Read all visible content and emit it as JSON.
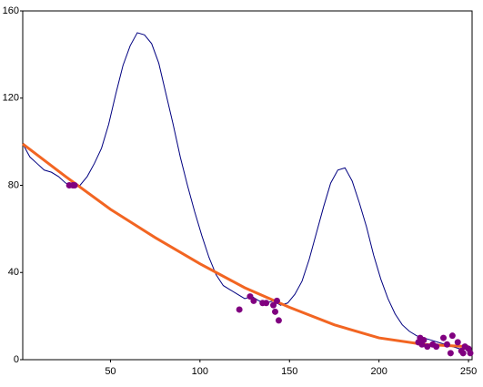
{
  "chart_data": {
    "type": "line",
    "xlim": [
      1,
      252
    ],
    "ylim": [
      0,
      160
    ],
    "xticks": [
      50,
      100,
      150,
      200,
      250
    ],
    "yticks": [
      0,
      40,
      80,
      120,
      160
    ],
    "series": [
      {
        "kind": "line",
        "color": "#000080",
        "width": 1,
        "x": [
          1,
          5,
          9,
          13,
          17,
          21,
          25,
          29,
          33,
          37,
          41,
          45,
          49,
          53,
          57,
          61,
          65,
          69,
          73,
          77,
          81,
          85,
          89,
          93,
          97,
          101,
          105,
          109,
          113,
          117,
          121,
          125,
          129,
          133,
          137,
          141,
          145,
          149,
          153,
          157,
          161,
          165,
          169,
          173,
          177,
          181,
          185,
          189,
          193,
          197,
          201,
          205,
          209,
          213,
          217,
          221,
          225,
          229,
          233,
          237,
          241,
          245,
          249
        ],
        "values": [
          99,
          93,
          90,
          87,
          86,
          84,
          81,
          80,
          80,
          84,
          90,
          97,
          108,
          122,
          135,
          144,
          150,
          149,
          145,
          136,
          122,
          108,
          93,
          80,
          68,
          57,
          47,
          39,
          34,
          32,
          30,
          28,
          29,
          27,
          26,
          27,
          25,
          26,
          30,
          36,
          46,
          58,
          70,
          81,
          87,
          88,
          82,
          72,
          61,
          48,
          37,
          28,
          21,
          16,
          13,
          11,
          10,
          9,
          8,
          7,
          6,
          5,
          5
        ]
      },
      {
        "kind": "line",
        "color": "#f26522",
        "width": 3,
        "x": [
          1,
          25,
          50,
          75,
          100,
          125,
          150,
          175,
          200,
          225,
          250
        ],
        "values": [
          99,
          84,
          69,
          56,
          44,
          33,
          24,
          16,
          10,
          7,
          6
        ]
      },
      {
        "kind": "scatter",
        "color": "#800080",
        "x": [
          27,
          29,
          30,
          122,
          128,
          130,
          135,
          137,
          141,
          142,
          143,
          144,
          222,
          223,
          224,
          225,
          227,
          230,
          232,
          236,
          238,
          240,
          241,
          244,
          246,
          247,
          248,
          250,
          251
        ],
        "values": [
          80,
          80,
          80,
          23,
          29,
          27,
          26,
          26,
          25,
          22,
          27,
          18,
          8,
          10,
          7,
          9,
          6,
          7,
          6,
          10,
          7,
          3,
          11,
          8,
          4,
          3,
          6,
          5,
          3
        ]
      }
    ]
  }
}
